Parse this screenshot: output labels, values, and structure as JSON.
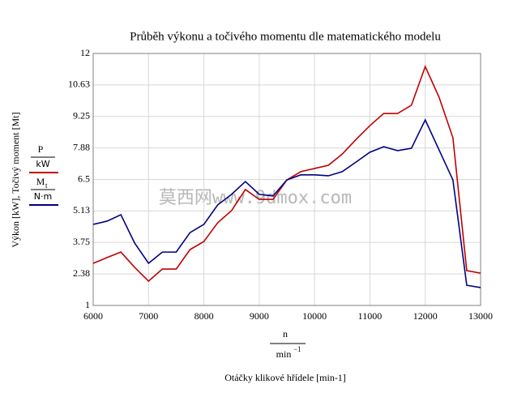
{
  "chart_data": {
    "type": "line",
    "title": "Průběh výkonu a točivého momentu dle matematického modelu",
    "x_label_numerator": "n",
    "x_label_denominator": "min",
    "x_label_exponent": "−1",
    "x_title": "Otáčky klikové hřídele [min-1]",
    "y_label": "Výkon [kW], Točivý moment [Mt]",
    "watermark": "莫西网www.9dmox.com",
    "x": [
      6000,
      6250,
      6500,
      6750,
      7000,
      7250,
      7500,
      7750,
      8000,
      8250,
      8500,
      8750,
      9000,
      9250,
      9500,
      9750,
      10000,
      10250,
      10500,
      10750,
      11000,
      11250,
      11500,
      11750,
      12000,
      12250,
      12500,
      12750,
      13000
    ],
    "series": [
      {
        "name": "P",
        "unit": "kW",
        "color": "#c00000",
        "values": [
          2.84,
          3.09,
          3.33,
          2.66,
          2.06,
          2.59,
          2.59,
          3.44,
          3.79,
          4.61,
          5.14,
          6.06,
          5.63,
          5.63,
          6.48,
          6.84,
          6.98,
          7.12,
          7.61,
          8.25,
          8.85,
          9.38,
          9.38,
          9.74,
          11.43,
          10.09,
          8.32,
          2.52,
          2.41
        ]
      },
      {
        "name": "M",
        "subscript": "t",
        "unit": "N·m",
        "color": "#000080",
        "values": [
          4.54,
          4.68,
          4.96,
          3.72,
          2.84,
          3.33,
          3.33,
          4.18,
          4.54,
          5.39,
          5.85,
          6.41,
          5.85,
          5.78,
          6.48,
          6.7,
          6.7,
          6.66,
          6.84,
          7.26,
          7.69,
          7.93,
          7.76,
          7.86,
          9.1,
          7.79,
          6.48,
          1.88,
          1.78
        ]
      }
    ],
    "xlim": [
      6000,
      13000
    ],
    "xticks": [
      6000,
      7000,
      8000,
      9000,
      10000,
      11000,
      12000,
      13000
    ],
    "ylim": [
      1,
      12
    ],
    "yticks": [
      1,
      {
        "value": 2.375,
        "label": "2.38"
      },
      3.75,
      {
        "value": 5.125,
        "label": "5.13"
      },
      6.5,
      {
        "value": 7.875,
        "label": "7.88"
      },
      9.25,
      {
        "value": 10.625,
        "label": "10.63"
      },
      12
    ],
    "grid": true
  }
}
